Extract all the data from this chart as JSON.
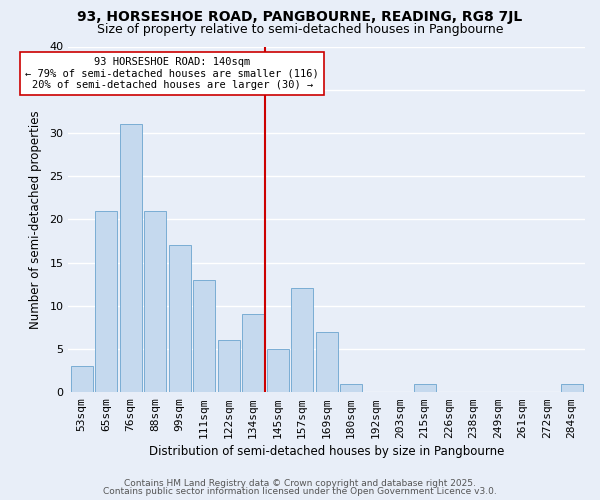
{
  "title": "93, HORSESHOE ROAD, PANGBOURNE, READING, RG8 7JL",
  "subtitle": "Size of property relative to semi-detached houses in Pangbourne",
  "xlabel": "Distribution of semi-detached houses by size in Pangbourne",
  "ylabel": "Number of semi-detached properties",
  "categories": [
    "53sqm",
    "65sqm",
    "76sqm",
    "88sqm",
    "99sqm",
    "111sqm",
    "122sqm",
    "134sqm",
    "145sqm",
    "157sqm",
    "169sqm",
    "180sqm",
    "192sqm",
    "203sqm",
    "215sqm",
    "226sqm",
    "238sqm",
    "249sqm",
    "261sqm",
    "272sqm",
    "284sqm"
  ],
  "values": [
    3,
    21,
    31,
    21,
    17,
    13,
    6,
    9,
    5,
    12,
    7,
    1,
    0,
    0,
    1,
    0,
    0,
    0,
    0,
    0,
    1
  ],
  "bar_color": "#c5d9ee",
  "bar_edge_color": "#7aadd4",
  "vline_x_index": 7.5,
  "vline_color": "#cc0000",
  "ylim": [
    0,
    40
  ],
  "yticks": [
    0,
    5,
    10,
    15,
    20,
    25,
    30,
    35,
    40
  ],
  "annotation_title": "93 HORSESHOE ROAD: 140sqm",
  "annotation_line1": "← 79% of semi-detached houses are smaller (116)",
  "annotation_line2": "20% of semi-detached houses are larger (30) →",
  "footer1": "Contains HM Land Registry data © Crown copyright and database right 2025.",
  "footer2": "Contains public sector information licensed under the Open Government Licence v3.0.",
  "background_color": "#e8eef8",
  "grid_color": "#ffffff",
  "title_fontsize": 10,
  "subtitle_fontsize": 9,
  "axis_label_fontsize": 8.5,
  "tick_fontsize": 8,
  "annotation_fontsize": 7.5,
  "footer_fontsize": 6.5
}
